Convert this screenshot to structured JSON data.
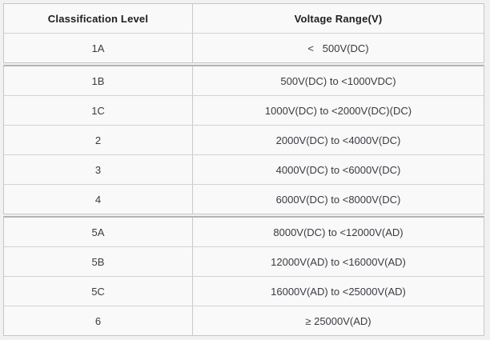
{
  "table": {
    "headers": [
      "Classification Level",
      "Voltage Range(V)"
    ],
    "sections": [
      {
        "rows": [
          {
            "level": "1A",
            "range": "<   500V(DC)"
          }
        ]
      },
      {
        "rows": [
          {
            "level": "1B",
            "range": "500V(DC) to <1000VDC)"
          },
          {
            "level": "1C",
            "range": "1000V(DC) to <2000V(DC)(DC)"
          },
          {
            "level": "2",
            "range": "2000V(DC) to <4000V(DC)"
          },
          {
            "level": "3",
            "range": "4000V(DC) to <6000V(DC)"
          },
          {
            "level": "4",
            "range": "6000V(DC) to <8000V(DC)"
          }
        ]
      },
      {
        "rows": [
          {
            "level": "5A",
            "range": "8000V(DC) to <12000V(AD)"
          },
          {
            "level": "5B",
            "range": "12000V(AD) to <16000V(AD)"
          },
          {
            "level": "5C",
            "range": "16000V(AD) to <25000V(AD)"
          },
          {
            "level": "6",
            "range": "≥ 25000V(AD)"
          }
        ]
      }
    ]
  },
  "chart_data": {
    "type": "table",
    "title": "",
    "columns": [
      "Classification Level",
      "Voltage Range(V)"
    ],
    "rows": [
      [
        "1A",
        "< 500V(DC)"
      ],
      [
        "1B",
        "500V(DC) to <1000VDC)"
      ],
      [
        "1C",
        "1000V(DC) to <2000V(DC)(DC)"
      ],
      [
        "2",
        "2000V(DC) to <4000V(DC)"
      ],
      [
        "3",
        "4000V(DC) to <6000V(DC)"
      ],
      [
        "4",
        "6000V(DC) to <8000V(DC)"
      ],
      [
        "5A",
        "8000V(DC) to <12000V(AD)"
      ],
      [
        "5B",
        "12000V(AD) to <16000V(AD)"
      ],
      [
        "5C",
        "16000V(AD) to <25000V(AD)"
      ],
      [
        "6",
        "≥ 25000V(AD)"
      ]
    ],
    "layout_hints": {
      "group_dividers_after_rows": [
        "1A",
        "4"
      ],
      "header_bold": true,
      "cell_alignment": "center"
    }
  },
  "colors": {
    "page_background": "#f1f1f1",
    "cell_background": "#f9f9f9",
    "border_thin": "#d2d2d2",
    "border_outer": "#c7c7c7",
    "border_thick": "#b4b4b4",
    "header_text": "#1e1e1e",
    "cell_text": "#3a3a42"
  }
}
